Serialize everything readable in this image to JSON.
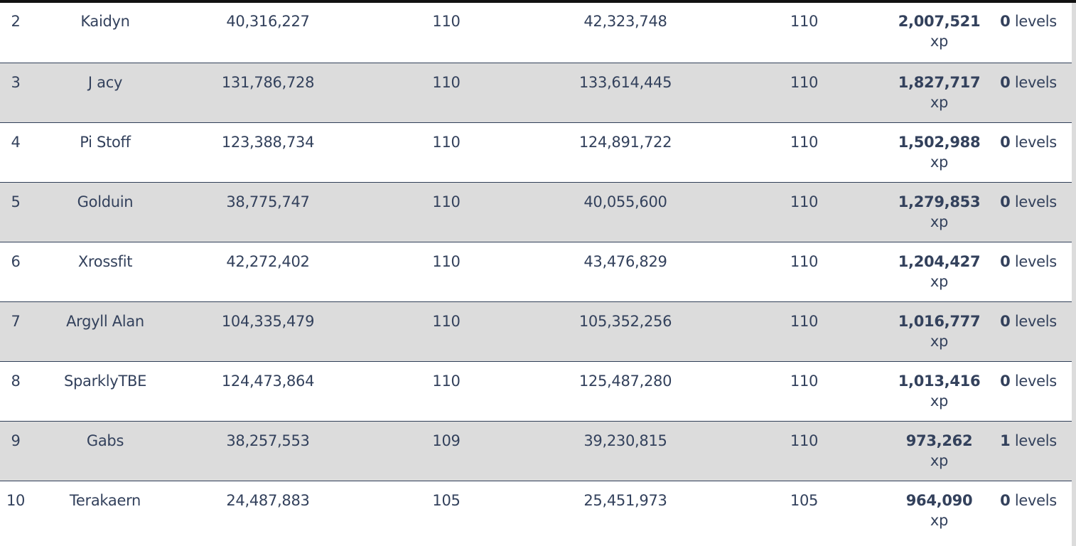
{
  "colors": {
    "text": "#33415c",
    "row_alt_background": "#dcdcdc",
    "row_background": "#ffffff",
    "row_divider": "#2f3e57"
  },
  "rows": [
    {
      "rank": "2",
      "name": "Kaidyn",
      "start_xp": "40,316,227",
      "start_level": "110",
      "current_xp": "42,323,748",
      "current_level": "110",
      "gained_xp": "2,007,521",
      "xp_unit": "xp",
      "gained_levels": "0",
      "levels_unit": "levels"
    },
    {
      "rank": "3",
      "name": "J acy",
      "start_xp": "131,786,728",
      "start_level": "110",
      "current_xp": "133,614,445",
      "current_level": "110",
      "gained_xp": "1,827,717",
      "xp_unit": "xp",
      "gained_levels": "0",
      "levels_unit": "levels"
    },
    {
      "rank": "4",
      "name": "Pi Stoff",
      "start_xp": "123,388,734",
      "start_level": "110",
      "current_xp": "124,891,722",
      "current_level": "110",
      "gained_xp": "1,502,988",
      "xp_unit": "xp",
      "gained_levels": "0",
      "levels_unit": "levels"
    },
    {
      "rank": "5",
      "name": "Golduin",
      "start_xp": "38,775,747",
      "start_level": "110",
      "current_xp": "40,055,600",
      "current_level": "110",
      "gained_xp": "1,279,853",
      "xp_unit": "xp",
      "gained_levels": "0",
      "levels_unit": "levels"
    },
    {
      "rank": "6",
      "name": "Xrossfit",
      "start_xp": "42,272,402",
      "start_level": "110",
      "current_xp": "43,476,829",
      "current_level": "110",
      "gained_xp": "1,204,427",
      "xp_unit": "xp",
      "gained_levels": "0",
      "levels_unit": "levels"
    },
    {
      "rank": "7",
      "name": "Argyll Alan",
      "start_xp": "104,335,479",
      "start_level": "110",
      "current_xp": "105,352,256",
      "current_level": "110",
      "gained_xp": "1,016,777",
      "xp_unit": "xp",
      "gained_levels": "0",
      "levels_unit": "levels"
    },
    {
      "rank": "8",
      "name": "SparklyTBE",
      "start_xp": "124,473,864",
      "start_level": "110",
      "current_xp": "125,487,280",
      "current_level": "110",
      "gained_xp": "1,013,416",
      "xp_unit": "xp",
      "gained_levels": "0",
      "levels_unit": "levels"
    },
    {
      "rank": "9",
      "name": "Gabs",
      "start_xp": "38,257,553",
      "start_level": "109",
      "current_xp": "39,230,815",
      "current_level": "110",
      "gained_xp": "973,262",
      "xp_unit": "xp",
      "gained_levels": "1",
      "levels_unit": "levels"
    },
    {
      "rank": "10",
      "name": "Terakaern",
      "start_xp": "24,487,883",
      "start_level": "105",
      "current_xp": "25,451,973",
      "current_level": "105",
      "gained_xp": "964,090",
      "xp_unit": "xp",
      "gained_levels": "0",
      "levels_unit": "levels"
    }
  ]
}
